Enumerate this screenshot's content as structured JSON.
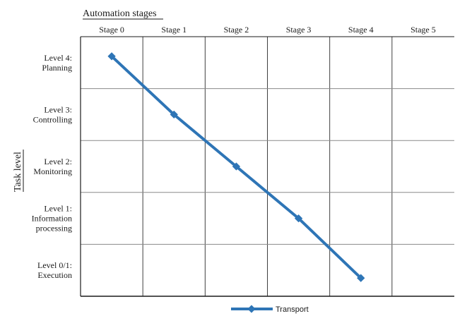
{
  "chart_data": {
    "type": "line",
    "xlabel": "Automation stages",
    "ylabel": "Task level",
    "categories": [
      "Stage 0",
      "Stage 1",
      "Stage 2",
      "Stage 3",
      "Stage 4",
      "Stage 5"
    ],
    "y_levels": [
      [
        "Level 0/1:",
        "Execution"
      ],
      [
        "Level 1:",
        "Information",
        "processing"
      ],
      [
        "Level 2:",
        "Monitoring"
      ],
      [
        "Level 3:",
        "Controlling"
      ],
      [
        "Level 4:",
        "Planning"
      ]
    ],
    "series": [
      {
        "name": "Transport",
        "x": [
          "Stage 0",
          "Stage 1",
          "Stage 2",
          "Stage 3",
          "Stage 4"
        ],
        "y": [
          "Level 4",
          "Level 3",
          "Level 2",
          "Level 1",
          "Level 0/1"
        ],
        "values": [
          4,
          3,
          2,
          1,
          0
        ]
      }
    ],
    "grid": true,
    "legend_position": "bottom-center",
    "colors": {
      "series": "#2e75b6",
      "grid": "#404040"
    }
  }
}
